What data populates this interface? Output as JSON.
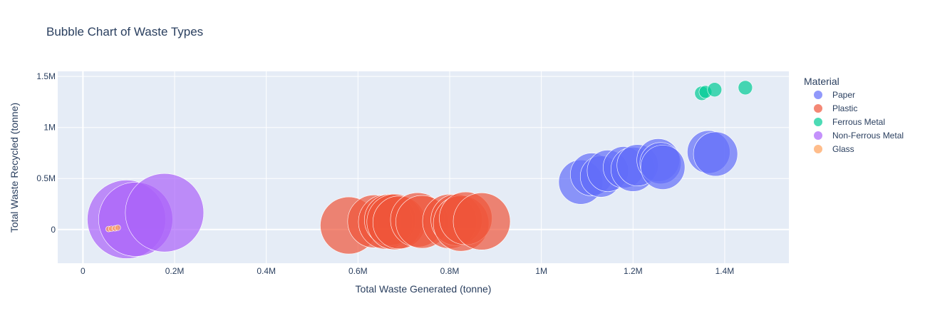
{
  "chart_data": {
    "type": "scatter",
    "subtype": "bubble",
    "title": "Bubble Chart of Waste Types",
    "xlabel": "Total Waste Generated (tonne)",
    "ylabel": "Total Waste Recycled (tonne)",
    "xlim": [
      -55000,
      1540000
    ],
    "ylim": [
      -330000,
      1550000
    ],
    "x_ticks": [
      {
        "value": 0,
        "label": "0"
      },
      {
        "value": 200000,
        "label": "0.2M"
      },
      {
        "value": 400000,
        "label": "0.4M"
      },
      {
        "value": 600000,
        "label": "0.6M"
      },
      {
        "value": 800000,
        "label": "0.8M"
      },
      {
        "value": 1000000,
        "label": "1M"
      },
      {
        "value": 1200000,
        "label": "1.2M"
      },
      {
        "value": 1400000,
        "label": "1.4M"
      }
    ],
    "y_ticks": [
      {
        "value": 0,
        "label": "0"
      },
      {
        "value": 500000,
        "label": "0.5M"
      },
      {
        "value": 1000000,
        "label": "1M"
      },
      {
        "value": 1500000,
        "label": "1.5M"
      }
    ],
    "grid": true,
    "background_color": "#e5ecf6",
    "legend_title": "Material",
    "legend_position": "right",
    "series": [
      {
        "name": "Paper",
        "color": "#636efa",
        "points": [
          {
            "x": 1086000,
            "y": 465000,
            "size": 31
          },
          {
            "x": 1110000,
            "y": 540000,
            "size": 30
          },
          {
            "x": 1130000,
            "y": 520000,
            "size": 29
          },
          {
            "x": 1145000,
            "y": 575000,
            "size": 29
          },
          {
            "x": 1180000,
            "y": 610000,
            "size": 29
          },
          {
            "x": 1200000,
            "y": 590000,
            "size": 31
          },
          {
            "x": 1210000,
            "y": 630000,
            "size": 29
          },
          {
            "x": 1255000,
            "y": 680000,
            "size": 30
          },
          {
            "x": 1260000,
            "y": 650000,
            "size": 29
          },
          {
            "x": 1265000,
            "y": 610000,
            "size": 31
          },
          {
            "x": 1365000,
            "y": 760000,
            "size": 30
          },
          {
            "x": 1380000,
            "y": 740000,
            "size": 31
          }
        ]
      },
      {
        "name": "Plastic",
        "color": "#ef553b",
        "points": [
          {
            "x": 580000,
            "y": 40000,
            "size": 40
          },
          {
            "x": 635000,
            "y": 80000,
            "size": 37
          },
          {
            "x": 660000,
            "y": 75000,
            "size": 38
          },
          {
            "x": 670000,
            "y": 95000,
            "size": 36
          },
          {
            "x": 680000,
            "y": 75000,
            "size": 39
          },
          {
            "x": 690000,
            "y": 70000,
            "size": 37
          },
          {
            "x": 730000,
            "y": 95000,
            "size": 38
          },
          {
            "x": 740000,
            "y": 75000,
            "size": 37
          },
          {
            "x": 800000,
            "y": 80000,
            "size": 38
          },
          {
            "x": 815000,
            "y": 95000,
            "size": 36
          },
          {
            "x": 825000,
            "y": 60000,
            "size": 39
          },
          {
            "x": 835000,
            "y": 110000,
            "size": 37
          },
          {
            "x": 870000,
            "y": 80000,
            "size": 40
          }
        ]
      },
      {
        "name": "Ferrous Metal",
        "color": "#00cc96",
        "points": [
          {
            "x": 1350000,
            "y": 1335000,
            "size": 10
          },
          {
            "x": 1358000,
            "y": 1348000,
            "size": 9
          },
          {
            "x": 1378000,
            "y": 1370000,
            "size": 10
          },
          {
            "x": 1445000,
            "y": 1390000,
            "size": 10
          }
        ]
      },
      {
        "name": "Non-Ferrous Metal",
        "color": "#ab63fa",
        "points": [
          {
            "x": 95000,
            "y": 100000,
            "size": 55
          },
          {
            "x": 115000,
            "y": 100000,
            "size": 52
          },
          {
            "x": 178000,
            "y": 165000,
            "size": 55
          }
        ]
      },
      {
        "name": "Glass",
        "color": "#ffa15a",
        "points": [
          {
            "x": 56000,
            "y": 5000,
            "size": 4
          },
          {
            "x": 62000,
            "y": 8000,
            "size": 4
          },
          {
            "x": 70000,
            "y": 12000,
            "size": 4
          },
          {
            "x": 76000,
            "y": 18000,
            "size": 4
          }
        ]
      }
    ]
  }
}
